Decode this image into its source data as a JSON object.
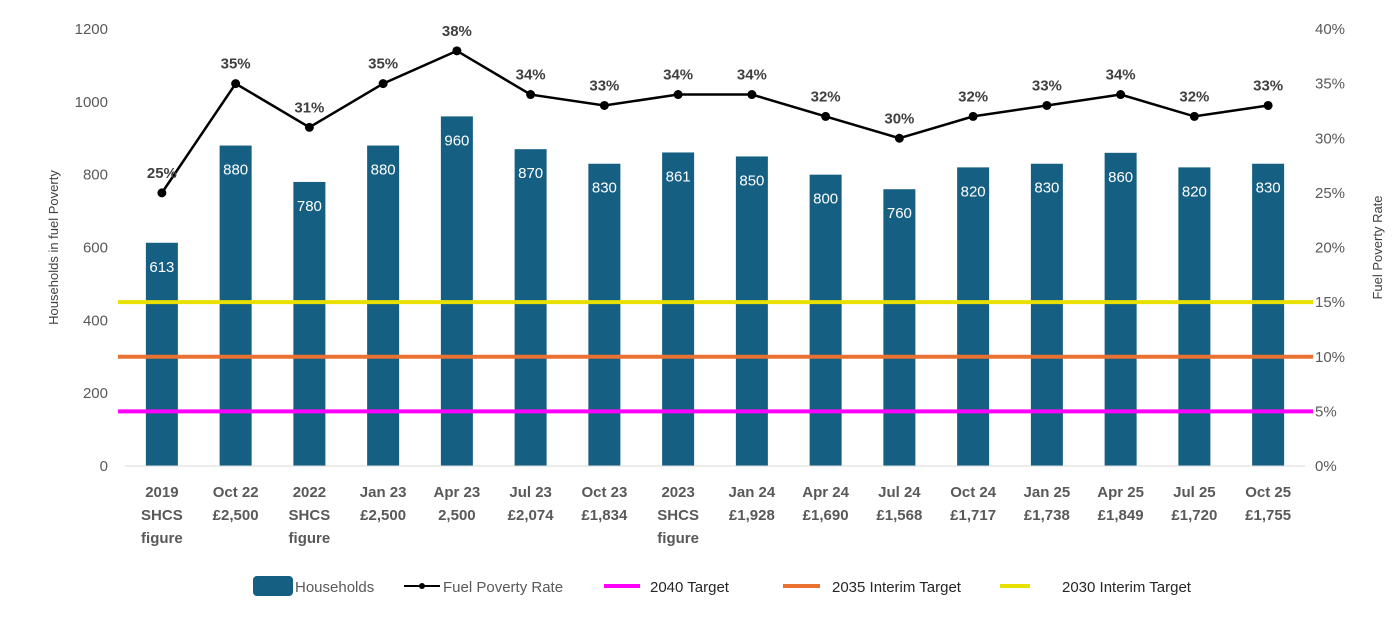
{
  "chart_data": {
    "type": "bar+line",
    "categories": [
      [
        "2019",
        "SHCS",
        "figure"
      ],
      [
        "Oct 22",
        "£2,500"
      ],
      [
        "2022",
        "SHCS",
        "figure"
      ],
      [
        "Jan 23",
        "£2,500"
      ],
      [
        "Apr 23",
        "2,500"
      ],
      [
        "Jul 23",
        "£2,074"
      ],
      [
        "Oct 23",
        "£1,834"
      ],
      [
        "2023",
        "SHCS",
        "figure"
      ],
      [
        "Jan 24",
        "£1,928"
      ],
      [
        "Apr 24",
        "£1,690"
      ],
      [
        "Jul 24",
        "£1,568"
      ],
      [
        "Oct 24",
        "£1,717"
      ],
      [
        "Jan 25",
        "£1,738"
      ],
      [
        "Apr 25",
        "£1,849"
      ],
      [
        "Jul 25",
        "£1,720"
      ],
      [
        "Oct 25",
        "£1,755"
      ]
    ],
    "series": [
      {
        "name": "Households",
        "type": "bar",
        "axis": "left",
        "color": "#155F82",
        "values": [
          613,
          880,
          780,
          880,
          960,
          870,
          830,
          861,
          850,
          800,
          760,
          820,
          830,
          860,
          820,
          830
        ]
      },
      {
        "name": "Fuel Poverty Rate",
        "type": "line",
        "axis": "right",
        "color": "#000000",
        "values": [
          25,
          35,
          31,
          35,
          38,
          34,
          33,
          34,
          34,
          32,
          30,
          32,
          33,
          34,
          32,
          33
        ]
      },
      {
        "name": "2040 Target",
        "type": "hline",
        "axis": "right",
        "color": "#FF00FF",
        "value": 5
      },
      {
        "name": "2035 Interim Target",
        "type": "hline",
        "axis": "right",
        "color": "#E97132",
        "value": 10
      },
      {
        "name": "2030 Interim Target",
        "type": "hline",
        "axis": "right",
        "color": "#E8E000",
        "value": 15
      }
    ],
    "ylabel": "Households in fuel Poverty",
    "y2label": "Fuel Poverty Rate",
    "ylim": [
      0,
      1200
    ],
    "yticks": [
      0,
      200,
      400,
      600,
      800,
      1000,
      1200
    ],
    "y2lim": [
      0,
      40
    ],
    "y2ticks": [
      "0%",
      "5%",
      "10%",
      "15%",
      "20%",
      "25%",
      "30%",
      "35%",
      "40%"
    ],
    "grid": false,
    "legend": "bottom"
  }
}
